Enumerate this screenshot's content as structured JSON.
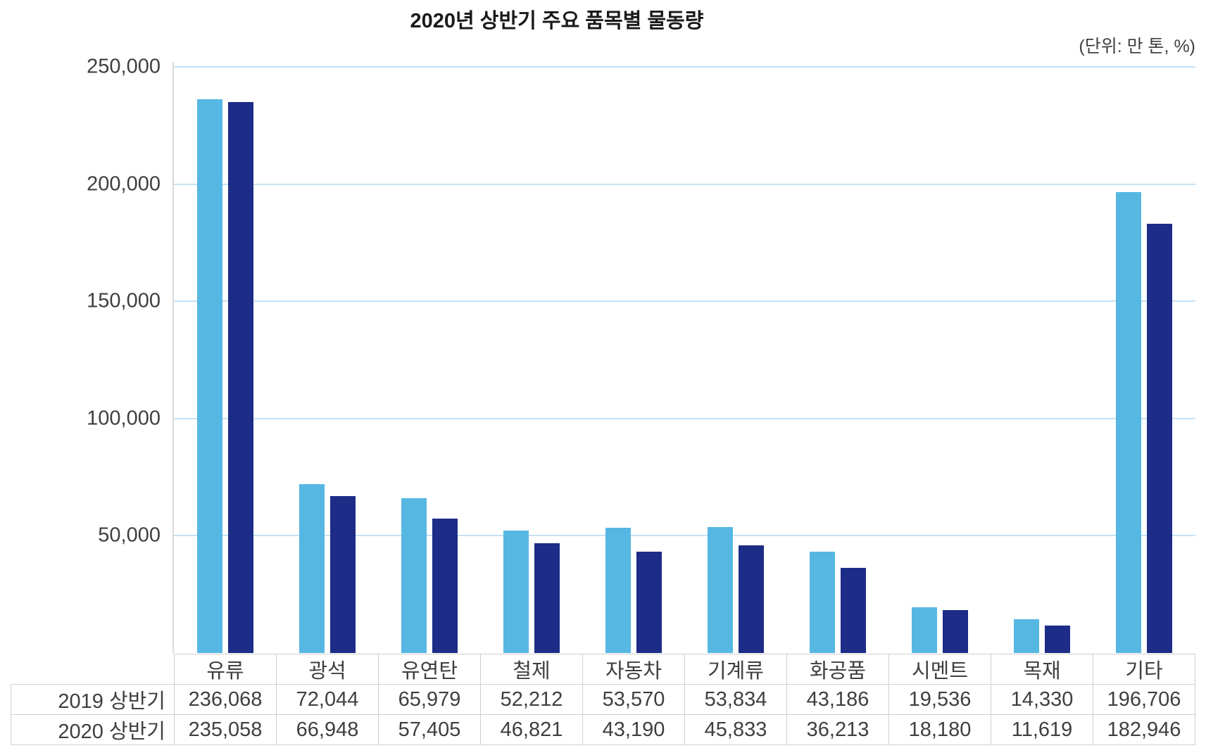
{
  "title": "2020년 상반기 주요 품목별 물동량",
  "unit_note": "(단위: 만 톤, %)",
  "colors": {
    "series_2019": "#57b7e3",
    "series_2020": "#1c2c87",
    "gridline": "#c3e1f6",
    "axis_line": "#d9d9d9",
    "table_border": "#cfcfcf",
    "text": "#3f3f3f",
    "title_text": "#1a1a1a"
  },
  "chart_data": {
    "type": "bar",
    "title": "2020년 상반기 주요 품목별 물동량",
    "unit": "(단위: 만 톤, %)",
    "categories": [
      "유류",
      "광석",
      "유연탄",
      "철제",
      "자동차",
      "기계류",
      "화공품",
      "시멘트",
      "목재",
      "기타"
    ],
    "series": [
      {
        "name": "2019 상반기",
        "color": "#57b7e3",
        "values": [
          236068,
          72044,
          65979,
          52212,
          53570,
          53834,
          43186,
          19536,
          14330,
          196706
        ]
      },
      {
        "name": "2020 상반기",
        "color": "#1c2c87",
        "values": [
          235058,
          66948,
          57405,
          46821,
          43190,
          45833,
          36213,
          18180,
          11619,
          182946
        ]
      }
    ],
    "ylim": [
      0,
      250000
    ],
    "ytick_interval": 50000,
    "yticks": [
      250000,
      200000,
      150000,
      100000,
      50000
    ],
    "ytick_labels": [
      "250,000",
      "200,000",
      "150,000",
      "100,000",
      "50,000"
    ],
    "grid": true,
    "legend_position": "none (series identified by table row labels)"
  }
}
